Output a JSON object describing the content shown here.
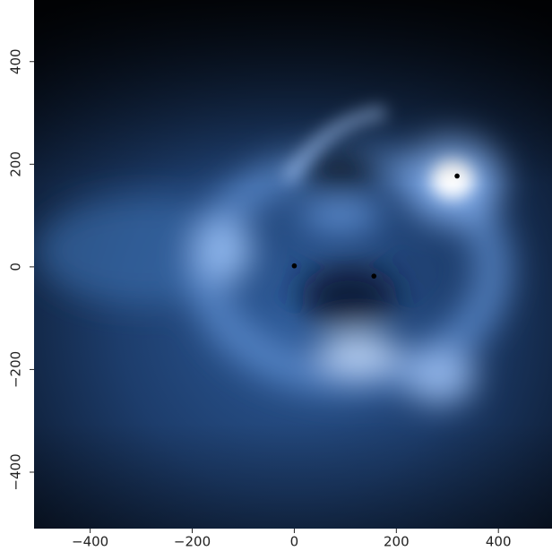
{
  "chart_data": {
    "type": "scatter",
    "x": [
      319,
      0,
      156
    ],
    "y": [
      177,
      2,
      -18
    ],
    "color": "#000000",
    "xlim": [
      -510,
      505
    ],
    "ylim": [
      -510,
      520
    ],
    "xticks": [
      {
        "value": -400,
        "label": "−400"
      },
      {
        "value": -200,
        "label": "−200"
      },
      0,
      200,
      400
    ],
    "yticks": [
      {
        "value": -400,
        "label": "−400"
      },
      {
        "value": -200,
        "label": "−200"
      },
      0,
      200,
      400
    ]
  }
}
